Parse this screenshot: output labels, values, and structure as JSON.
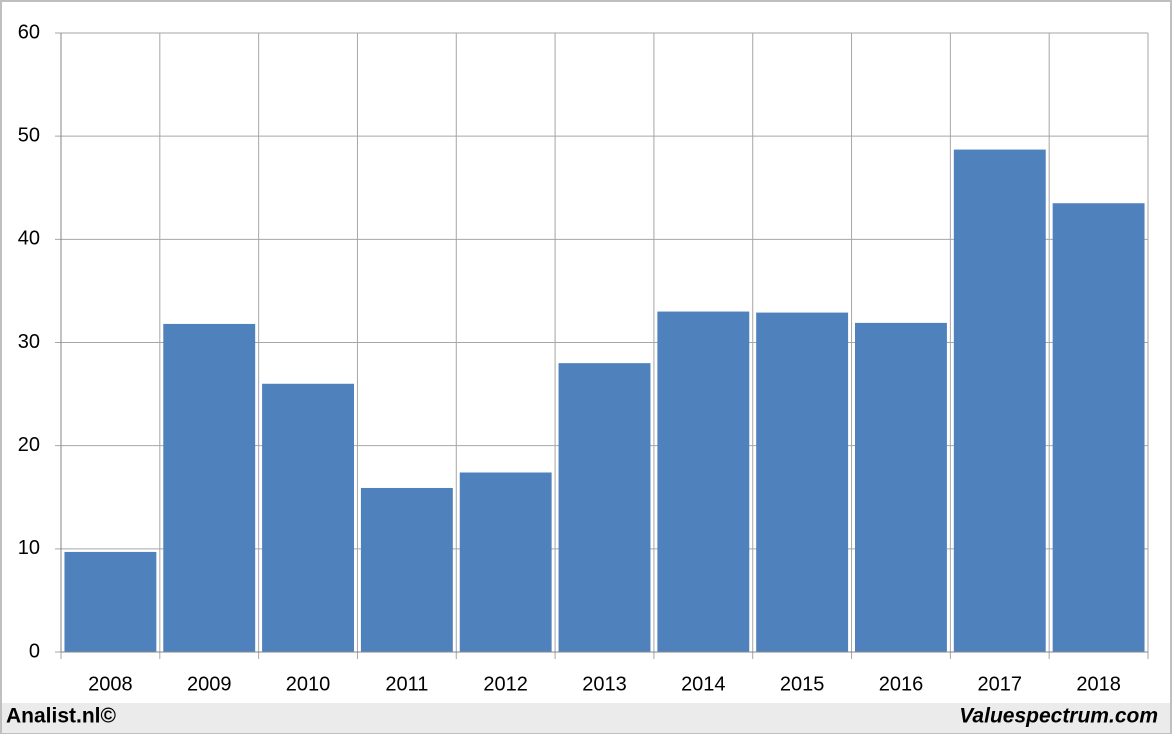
{
  "chart_data": {
    "type": "bar",
    "categories": [
      "2008",
      "2009",
      "2010",
      "2011",
      "2012",
      "2013",
      "2014",
      "2015",
      "2016",
      "2017",
      "2018"
    ],
    "values": [
      9.7,
      31.8,
      26.0,
      15.9,
      17.4,
      28.0,
      33.0,
      32.9,
      31.9,
      48.7,
      43.5
    ],
    "color": "#4f81bd",
    "ylim": [
      0,
      60
    ],
    "yticks": [
      0,
      10,
      20,
      30,
      40,
      50,
      60
    ],
    "grid": true,
    "notes": [
      "Analist.nl©",
      "Valuespectrum.com"
    ]
  }
}
